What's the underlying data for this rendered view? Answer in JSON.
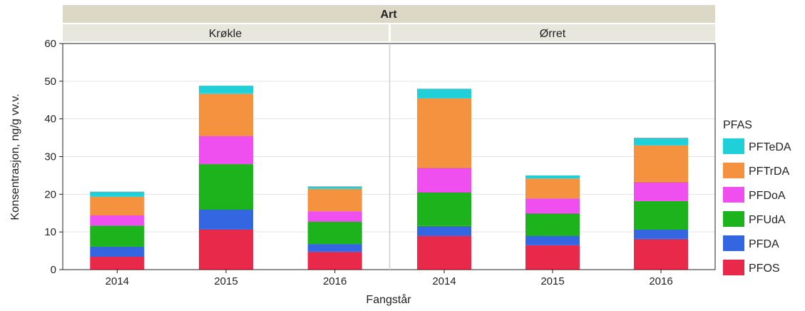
{
  "chart_data": {
    "type": "bar",
    "stacked": true,
    "facet_title": "Art",
    "facets": [
      "Krøkle",
      "Ørret"
    ],
    "categories": [
      "2014",
      "2015",
      "2016"
    ],
    "xlabel": "Fangstår",
    "ylabel": "Konsentrasjon, ng/g vv.v.",
    "ylim": [
      0,
      60
    ],
    "yticks": [
      "0",
      "10",
      "20",
      "30",
      "40",
      "50",
      "60"
    ],
    "legend_title": "PFAS",
    "legend_position": "right",
    "series": [
      {
        "name": "PFOS",
        "color": "#e8294a",
        "values": {
          "Krøkle": [
            3.5,
            10.8,
            4.8
          ],
          "Ørret": [
            9.0,
            6.5,
            8.2
          ]
        }
      },
      {
        "name": "PFDA",
        "color": "#3366e0",
        "values": {
          "Krøkle": [
            2.7,
            5.2,
            2.0
          ],
          "Ørret": [
            2.6,
            2.5,
            2.4
          ]
        }
      },
      {
        "name": "PFUdA",
        "color": "#1db31d",
        "values": {
          "Krøkle": [
            5.5,
            12.0,
            6.0
          ],
          "Ørret": [
            9.0,
            6.0,
            7.6
          ]
        }
      },
      {
        "name": "PFDoA",
        "color": "#f04ff0",
        "values": {
          "Krøkle": [
            2.8,
            7.5,
            2.7
          ],
          "Ørret": [
            6.5,
            3.9,
            5.1
          ]
        }
      },
      {
        "name": "PFTrDA",
        "color": "#f59240",
        "values": {
          "Krøkle": [
            5.0,
            11.3,
            6.0
          ],
          "Ørret": [
            18.4,
            5.3,
            9.7
          ]
        }
      },
      {
        "name": "PFTeDA",
        "color": "#1fd0d8",
        "values": {
          "Krøkle": [
            1.2,
            2.0,
            0.6
          ],
          "Ørret": [
            2.5,
            0.8,
            2.0
          ]
        }
      }
    ],
    "legend_order": [
      "PFTeDA",
      "PFTrDA",
      "PFDoA",
      "PFUdA",
      "PFDA",
      "PFOS"
    ],
    "grid": true
  }
}
